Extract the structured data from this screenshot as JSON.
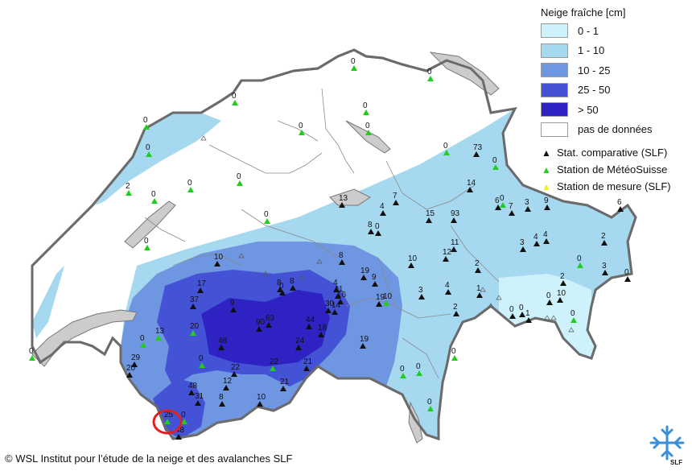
{
  "legend": {
    "title": "Neige fraîche [cm]",
    "classes": [
      {
        "label": "0 - 1",
        "color": "#cdf2fb"
      },
      {
        "label": "1 - 10",
        "color": "#a6d8f0"
      },
      {
        "label": "10 - 25",
        "color": "#6f96e0"
      },
      {
        "label": "25 - 50",
        "color": "#4452d6"
      },
      {
        "label": "> 50",
        "color": "#2e23c2"
      },
      {
        "label": "pas de données",
        "color": "#ffffff"
      }
    ],
    "symbols": [
      {
        "label": "Stat. comparative (SLF)",
        "color": "#111111"
      },
      {
        "label": "Station de MétéoSuisse",
        "color": "#22cc22"
      },
      {
        "label": "Station de mesure (SLF)",
        "color": "#eeee22"
      }
    ]
  },
  "copyright": "© WSL Institut pour l’étude de la neige et des avalanches SLF",
  "logo": {
    "text": "SLF",
    "icon": "snowflake-cross-icon"
  },
  "highlight": {
    "label": "48",
    "color": "#e02020"
  },
  "stations": [
    {
      "label": "0",
      "type": "meteo"
    },
    {
      "label": "0",
      "type": "meteo"
    },
    {
      "label": "0",
      "type": "meteo"
    },
    {
      "label": "0",
      "type": "meteo"
    },
    {
      "label": "0",
      "type": "meteo"
    },
    {
      "label": "0",
      "type": "meteo"
    },
    {
      "label": "2",
      "type": "meteo"
    },
    {
      "label": "0",
      "type": "meteo"
    },
    {
      "label": "0",
      "type": "meteo"
    },
    {
      "label": "0",
      "type": "meteo"
    },
    {
      "label": "0",
      "type": "meteo"
    },
    {
      "label": "0",
      "type": "meteo"
    },
    {
      "label": "0",
      "type": "meteo"
    },
    {
      "label": "73",
      "type": "slf"
    },
    {
      "label": "0",
      "type": "meteo"
    },
    {
      "label": "14",
      "type": "slf"
    },
    {
      "label": "13",
      "type": "slf"
    },
    {
      "label": "7",
      "type": "slf"
    },
    {
      "label": "4",
      "type": "slf"
    },
    {
      "label": "8",
      "type": "slf"
    },
    {
      "label": "0",
      "type": "slf"
    },
    {
      "label": "15",
      "type": "slf"
    },
    {
      "label": "93",
      "type": "slf"
    },
    {
      "label": "0",
      "type": "meteo"
    },
    {
      "label": "6",
      "type": "slf"
    },
    {
      "label": "0",
      "type": "meteo"
    },
    {
      "label": "7",
      "type": "slf"
    },
    {
      "label": "3",
      "type": "slf"
    },
    {
      "label": "9",
      "type": "slf"
    },
    {
      "label": "6",
      "type": "slf"
    },
    {
      "label": "10",
      "type": "slf"
    },
    {
      "label": "8",
      "type": "slf"
    },
    {
      "label": "4",
      "type": "slf"
    },
    {
      "label": "11",
      "type": "slf"
    },
    {
      "label": "12",
      "type": "slf"
    },
    {
      "label": "3",
      "type": "slf"
    },
    {
      "label": "4",
      "type": "slf"
    },
    {
      "label": "2",
      "type": "slf"
    },
    {
      "label": "0",
      "type": "meteo"
    },
    {
      "label": "2",
      "type": "slf"
    },
    {
      "label": "0",
      "type": "slf"
    },
    {
      "label": "3",
      "type": "slf"
    },
    {
      "label": "17",
      "type": "slf"
    },
    {
      "label": "8",
      "type": "slf"
    },
    {
      "label": "19",
      "type": "slf"
    },
    {
      "label": "9",
      "type": "slf"
    },
    {
      "label": "10",
      "type": "meteo"
    },
    {
      "label": "8",
      "type": "slf"
    },
    {
      "label": "0",
      "type": "slf"
    },
    {
      "label": "4",
      "type": "slf"
    },
    {
      "label": "11",
      "type": "slf"
    },
    {
      "label": "16",
      "type": "slf"
    },
    {
      "label": "3",
      "type": "slf"
    },
    {
      "label": "4",
      "type": "slf"
    },
    {
      "label": "1",
      "type": "slf"
    },
    {
      "label": "2",
      "type": "slf"
    },
    {
      "label": "2",
      "type": "slf"
    },
    {
      "label": "10",
      "type": "slf"
    },
    {
      "label": "37",
      "type": "slf"
    },
    {
      "label": "9",
      "type": "slf"
    },
    {
      "label": "30",
      "type": "slf"
    },
    {
      "label": "14",
      "type": "slf"
    },
    {
      "label": "19",
      "type": "slf"
    },
    {
      "label": "10",
      "type": "slf"
    },
    {
      "label": "0",
      "type": "slf"
    },
    {
      "label": "0",
      "type": "slf"
    },
    {
      "label": "1",
      "type": "slf"
    },
    {
      "label": "0",
      "type": "meteo"
    },
    {
      "label": "0",
      "type": "slf"
    },
    {
      "label": "90",
      "type": "slf"
    },
    {
      "label": "63",
      "type": "slf"
    },
    {
      "label": "44",
      "type": "slf"
    },
    {
      "label": "18",
      "type": "slf"
    },
    {
      "label": "20",
      "type": "meteo"
    },
    {
      "label": "13",
      "type": "meteo"
    },
    {
      "label": "0",
      "type": "meteo"
    },
    {
      "label": "48",
      "type": "slf"
    },
    {
      "label": "19",
      "type": "slf"
    },
    {
      "label": "0",
      "type": "meteo"
    },
    {
      "label": "0",
      "type": "meteo"
    },
    {
      "label": "0",
      "type": "meteo"
    },
    {
      "label": "0",
      "type": "meteo"
    },
    {
      "label": "29",
      "type": "slf"
    },
    {
      "label": "20",
      "type": "slf"
    },
    {
      "label": "0",
      "type": "meteo"
    },
    {
      "label": "22",
      "type": "slf"
    },
    {
      "label": "22",
      "type": "meteo"
    },
    {
      "label": "24",
      "type": "slf"
    },
    {
      "label": "21",
      "type": "slf"
    },
    {
      "label": "0",
      "type": "meteo"
    },
    {
      "label": "0",
      "type": "meteo"
    },
    {
      "label": "48",
      "type": "slf"
    },
    {
      "label": "31",
      "type": "slf"
    },
    {
      "label": "12",
      "type": "slf"
    },
    {
      "label": "8",
      "type": "slf"
    },
    {
      "label": "21",
      "type": "slf"
    },
    {
      "label": "10",
      "type": "slf"
    },
    {
      "label": "0",
      "type": "meteo"
    },
    {
      "label": "25",
      "type": "meteo"
    },
    {
      "label": "48",
      "type": "slf"
    },
    {
      "label": "0",
      "type": "meteo"
    }
  ]
}
